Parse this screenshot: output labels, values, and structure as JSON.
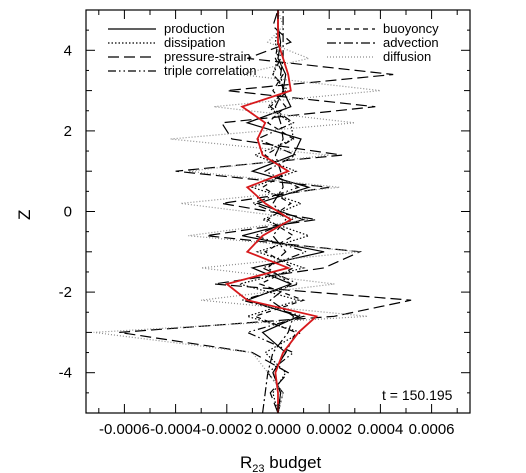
{
  "chart_data": {
    "type": "line",
    "xlabel": "R",
    "xlabel_sub": "23",
    "xlabel_rest": " budget",
    "ylabel": "Z",
    "xlim": [
      -0.00075,
      0.00075
    ],
    "ylim": [
      -5,
      5
    ],
    "x_ticks": [
      -0.0006,
      -0.0004,
      -0.0002,
      0.0,
      0.0002,
      0.0004,
      0.0006
    ],
    "x_tick_labels": [
      "-0.0006",
      "-0.0004",
      "-0.0002",
      "0.0000",
      "0.0002",
      "0.0004",
      "0.0006"
    ],
    "y_ticks": [
      -4,
      -2,
      0,
      2,
      4
    ],
    "y_tick_labels": [
      "-4",
      "-2",
      "0",
      "2",
      "4"
    ],
    "grid": false,
    "legend_placement": "top",
    "annotation": "t = 150.195",
    "series": [
      {
        "name": "production",
        "style": "solid",
        "color": "#000000",
        "z": [
          -5.0,
          -4.5,
          -4.0,
          -3.5,
          -3.0,
          -2.6,
          -2.2,
          -1.8,
          -1.4,
          -1.0,
          -0.6,
          -0.2,
          0.2,
          0.6,
          1.0,
          1.4,
          1.8,
          2.2,
          2.6,
          3.0,
          3.4,
          3.8,
          4.2,
          4.6,
          5.0
        ],
        "x": [
          0.0,
          1e-05,
          -2e-05,
          3e-05,
          -6e-05,
          8e-05,
          -0.00012,
          5e-05,
          -0.0001,
          0.00018,
          -0.00014,
          0.0001,
          -8e-05,
          0.00012,
          -0.0001,
          6e-05,
          9e-05,
          -0.00012,
          5e-05,
          2e-05,
          3e-05,
          0.0,
          1e-05,
          0.0,
          0.0
        ]
      },
      {
        "name": "dissipation",
        "style": "dotted",
        "color": "#000000",
        "z": [
          -5.0,
          -4.5,
          -4.0,
          -3.5,
          -3.0,
          -2.6,
          -2.2,
          -1.8,
          -1.4,
          -1.0,
          -0.6,
          -0.2,
          0.2,
          0.6,
          1.0,
          1.4,
          1.8,
          2.2,
          2.6,
          3.0,
          3.4,
          3.8,
          4.2,
          4.6,
          5.0
        ],
        "x": [
          0.0,
          -2e-05,
          3e-05,
          -5e-05,
          9e-05,
          -0.00012,
          8e-05,
          -0.00015,
          0.0001,
          -8e-05,
          0.00012,
          -6e-05,
          9e-05,
          -0.0001,
          7e-05,
          -9e-05,
          6e-05,
          5e-05,
          -4e-05,
          3e-05,
          -2e-05,
          0.0,
          -1e-05,
          0.0,
          0.0
        ]
      },
      {
        "name": "pressure-strain",
        "style": "dashed",
        "color": "#000000",
        "z": [
          -5.0,
          -4.5,
          -4.0,
          -3.5,
          -3.0,
          -2.6,
          -2.2,
          -1.8,
          -1.4,
          -1.0,
          -0.6,
          -0.2,
          0.2,
          0.6,
          1.0,
          1.4,
          1.8,
          2.2,
          2.6,
          3.0,
          3.4,
          3.8,
          4.2,
          4.6,
          5.0
        ],
        "x": [
          0.0,
          -3e-05,
          4e-05,
          -0.0001,
          -0.00062,
          0.00022,
          0.00052,
          -0.00025,
          0.00018,
          0.00032,
          -0.00028,
          0.00015,
          -0.00022,
          0.0002,
          -0.0004,
          0.00025,
          -0.00018,
          -0.00022,
          0.00038,
          -0.0002,
          0.00045,
          -0.00012,
          5e-05,
          -2e-05,
          0.0
        ]
      },
      {
        "name": "triple correlation",
        "style": "dashdotdot",
        "color": "#000000",
        "z": [
          -5.0,
          -4.5,
          -4.0,
          -3.5,
          -3.0,
          -2.6,
          -2.2,
          -1.8,
          -1.4,
          -1.0,
          -0.6,
          -0.2,
          0.2,
          0.6,
          1.0,
          1.4,
          1.8,
          2.2,
          2.6,
          3.0,
          3.4,
          3.8,
          4.2,
          4.6,
          5.0
        ],
        "x": [
          0.0,
          2e-05,
          -4e-05,
          6e-05,
          -0.00012,
          0.0001,
          -0.00014,
          8e-05,
          -6e-05,
          0.00011,
          -9e-05,
          6e-05,
          -0.0001,
          8e-05,
          -5e-05,
          7e-05,
          -8e-05,
          6e-05,
          -3e-05,
          4e-05,
          -2e-05,
          1e-05,
          0.0,
          0.0,
          0.0
        ]
      },
      {
        "name": "buoyoncy",
        "style": "shortdash",
        "color": "#000000",
        "z": [
          -5.0,
          -4.5,
          -4.0,
          -3.5,
          -3.0,
          -2.6,
          -2.2,
          -1.8,
          -1.4,
          -1.0,
          -0.6,
          -0.2,
          0.2,
          0.6,
          1.0,
          1.4,
          1.8,
          2.2,
          2.6,
          3.0,
          3.4,
          3.8,
          4.2,
          4.6,
          5.0
        ],
        "x": [
          0.0,
          1e-05,
          -2e-05,
          3e-05,
          7e-05,
          -9e-05,
          0.0001,
          -7e-05,
          6e-05,
          -5e-05,
          6e-05,
          -4e-05,
          5e-05,
          -6e-05,
          4e-05,
          -5e-05,
          6e-05,
          -4e-05,
          3e-05,
          -2e-05,
          2e-05,
          -1e-05,
          0.0,
          0.0,
          0.0
        ]
      },
      {
        "name": "advection",
        "style": "dashdot",
        "color": "#000000",
        "z": [
          -5.0,
          -4.5,
          -4.0,
          -3.5,
          -3.0,
          -2.6,
          -2.2,
          -1.8,
          -1.4,
          -1.0,
          -0.6,
          -0.2,
          0.2,
          0.6,
          1.0,
          1.4,
          1.8,
          2.2,
          2.6,
          3.0,
          3.4,
          3.8,
          4.2,
          4.6,
          5.0
        ],
        "x": [
          -6e-05,
          -5e-05,
          -4e-05,
          -2e-05,
          4e-05,
          6e-05,
          -3e-05,
          5e-05,
          -4e-05,
          3e-05,
          -2e-05,
          3e-05,
          -2e-05,
          2e-05,
          1e-05,
          -1e-05,
          2e-05,
          1e-05,
          -1e-05,
          2e-05,
          1e-05,
          2e-05,
          2e-05,
          2e-05,
          2e-05
        ]
      },
      {
        "name": "diffusion",
        "style": "finedot",
        "color": "#8c8c8c",
        "z": [
          -5.0,
          -4.5,
          -4.0,
          -3.5,
          -3.0,
          -2.6,
          -2.2,
          -1.8,
          -1.4,
          -1.0,
          -0.6,
          -0.2,
          0.2,
          0.6,
          1.0,
          1.4,
          1.8,
          2.2,
          2.6,
          3.0,
          3.4,
          3.8,
          4.2,
          4.6,
          5.0
        ],
        "x": [
          0.0,
          2e-05,
          -4e-05,
          -0.0001,
          -0.00072,
          0.00035,
          -0.0003,
          0.00022,
          -0.0003,
          0.00032,
          -0.00035,
          0.00012,
          -0.00038,
          0.00024,
          -0.00035,
          0.0002,
          -0.00042,
          0.0003,
          -0.00025,
          0.0004,
          -0.00015,
          0.00012,
          -4e-05,
          2e-05,
          0.0
        ]
      },
      {
        "name": "",
        "style": "solid",
        "color": "#d7191c",
        "z": [
          -5.0,
          -4.5,
          -4.0,
          -3.5,
          -3.0,
          -2.6,
          -2.2,
          -1.8,
          -1.4,
          -1.0,
          -0.6,
          -0.2,
          0.2,
          0.6,
          1.0,
          1.4,
          1.8,
          2.2,
          2.6,
          3.0,
          3.4,
          3.8,
          4.2,
          4.6,
          5.0
        ],
        "x": [
          0.0,
          0.0,
          -1e-05,
          2e-05,
          8e-05,
          0.00015,
          -0.00012,
          -0.0002,
          4e-05,
          -0.00012,
          -6e-05,
          5e-05,
          -5e-05,
          -0.00012,
          4e-05,
          -6e-05,
          -8e-05,
          -5e-05,
          -0.00014,
          5e-05,
          4e-05,
          2e-05,
          0.0,
          0.0,
          0.0
        ]
      }
    ]
  }
}
